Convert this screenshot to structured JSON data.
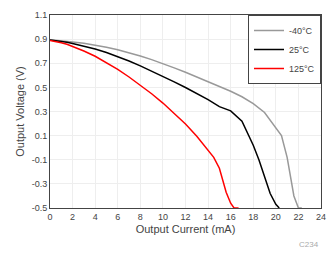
{
  "chart_data": {
    "type": "line",
    "x_label": "Output Current (mA)",
    "y_label": "Output Voltage (V)",
    "xlim": [
      0,
      24
    ],
    "ylim": [
      -0.5,
      1.1
    ],
    "xticks": [
      0,
      2,
      4,
      6,
      8,
      10,
      12,
      14,
      16,
      18,
      20,
      22,
      24
    ],
    "yticks": [
      -0.5,
      -0.3,
      -0.1,
      0.1,
      0.3,
      0.5,
      0.7,
      0.9,
      1.1
    ],
    "grid": true,
    "legend": "upper right",
    "annotations": [
      "C234"
    ],
    "series": [
      {
        "name": "-40°C",
        "color": "#999999",
        "x": [
          0,
          0.5,
          1,
          1.5,
          2,
          3,
          4,
          5,
          6,
          7,
          8,
          9,
          10,
          11,
          12,
          13,
          14,
          15,
          16,
          17,
          18,
          19,
          20,
          20.5,
          21,
          21.3,
          21.6,
          22,
          22.3
        ],
        "values": [
          0.895,
          0.892,
          0.888,
          0.883,
          0.877,
          0.865,
          0.85,
          0.832,
          0.812,
          0.788,
          0.76,
          0.73,
          0.698,
          0.662,
          0.625,
          0.586,
          0.546,
          0.508,
          0.468,
          0.422,
          0.365,
          0.292,
          0.17,
          0.1,
          -0.08,
          -0.25,
          -0.4,
          -0.5,
          -0.5
        ]
      },
      {
        "name": "25°C",
        "color": "#000000",
        "x": [
          0,
          0.5,
          1,
          1.5,
          2,
          3,
          4,
          5,
          6,
          7,
          8,
          9,
          10,
          11,
          12,
          13,
          14,
          15,
          16,
          17,
          18,
          18.5,
          19,
          19.5,
          20,
          20.3
        ],
        "values": [
          0.892,
          0.888,
          0.882,
          0.874,
          0.864,
          0.843,
          0.818,
          0.789,
          0.756,
          0.719,
          0.678,
          0.636,
          0.591,
          0.546,
          0.499,
          0.45,
          0.398,
          0.34,
          0.305,
          0.22,
          0.02,
          -0.1,
          -0.25,
          -0.38,
          -0.47,
          -0.5
        ]
      },
      {
        "name": "125°C",
        "color": "#ff0000",
        "x": [
          0,
          0.5,
          1,
          1.5,
          2,
          3,
          4,
          5,
          6,
          7,
          8,
          9,
          10,
          11,
          12,
          13,
          14,
          14.5,
          15,
          15.3,
          15.6,
          16,
          16.3,
          16.7
        ],
        "values": [
          0.888,
          0.88,
          0.87,
          0.857,
          0.84,
          0.802,
          0.758,
          0.707,
          0.65,
          0.586,
          0.519,
          0.447,
          0.37,
          0.286,
          0.196,
          0.095,
          -0.02,
          -0.08,
          -0.17,
          -0.27,
          -0.37,
          -0.46,
          -0.5,
          -0.5
        ]
      }
    ]
  }
}
